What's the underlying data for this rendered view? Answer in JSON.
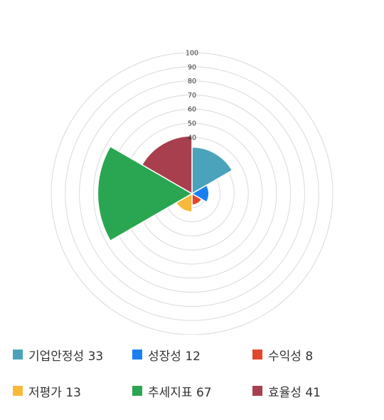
{
  "chart_data": {
    "type": "polar-area",
    "title": "",
    "rlim": [
      0,
      100
    ],
    "ticks": [
      "100",
      "90",
      "80",
      "70",
      "60",
      "50",
      "40"
    ],
    "grid": true,
    "legend_position": "bottom",
    "series": [
      {
        "name": "기업안정성",
        "value": 33,
        "label": "기업안정성 33",
        "color": "#4aa3bb"
      },
      {
        "name": "성장성",
        "value": 12,
        "label": "성장성 12",
        "color": "#1a7ff0"
      },
      {
        "name": "수익성",
        "value": 8,
        "label": "수익성 8",
        "color": "#e2472c"
      },
      {
        "name": "저평가",
        "value": 13,
        "label": "저평가 13",
        "color": "#f8b83a"
      },
      {
        "name": "추세지표",
        "value": 67,
        "label": "추세지표 67",
        "color": "#2aa652"
      },
      {
        "name": "효율성",
        "value": 41,
        "label": "효율성 41",
        "color": "#a83f4f"
      }
    ]
  }
}
